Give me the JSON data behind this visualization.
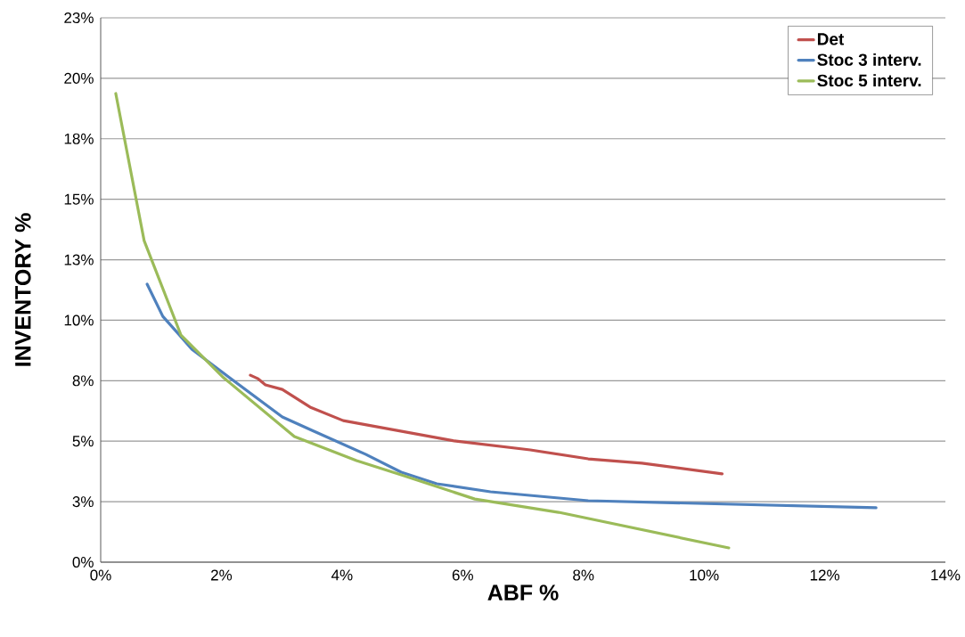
{
  "chart_data": {
    "type": "line",
    "xlabel": "ABF %",
    "ylabel": "INVENTORY %",
    "xlim": [
      0,
      14
    ],
    "ylim": [
      0,
      22.5
    ],
    "xticks": [
      {
        "value": 0,
        "label": "0%"
      },
      {
        "value": 2,
        "label": "2%"
      },
      {
        "value": 4,
        "label": "4%"
      },
      {
        "value": 6,
        "label": "6%"
      },
      {
        "value": 8,
        "label": "8%"
      },
      {
        "value": 10,
        "label": "10%"
      },
      {
        "value": 12,
        "label": "12%"
      },
      {
        "value": 14,
        "label": "14%"
      }
    ],
    "yticks": [
      {
        "value": 0,
        "label": "0%"
      },
      {
        "value": 2.5,
        "label": "3%"
      },
      {
        "value": 5,
        "label": "5%"
      },
      {
        "value": 7.5,
        "label": "8%"
      },
      {
        "value": 10,
        "label": "10%"
      },
      {
        "value": 12.5,
        "label": "13%"
      },
      {
        "value": 15,
        "label": "15%"
      },
      {
        "value": 17.5,
        "label": "18%"
      },
      {
        "value": 20,
        "label": "20%"
      },
      {
        "value": 22.5,
        "label": "23%"
      }
    ],
    "grid": "y",
    "legend": "top right",
    "marker": "none",
    "line_style": "solid",
    "series": [
      {
        "name": "Det",
        "color": "#c0504d",
        "x": [
          2.48,
          2.61,
          2.73,
          3.01,
          3.47,
          4.02,
          5.86,
          7.12,
          8.08,
          8.97,
          10.3
        ],
        "values": [
          7.73,
          7.58,
          7.33,
          7.14,
          6.41,
          5.85,
          5.01,
          4.64,
          4.27,
          4.09,
          3.65
        ]
      },
      {
        "name": "Stoc 3 interv.",
        "color": "#4f81bd",
        "x": [
          0.77,
          1.03,
          1.29,
          1.51,
          2.02,
          3.01,
          3.5,
          4.39,
          4.98,
          5.57,
          6.46,
          8.08,
          12.85
        ],
        "values": [
          11.49,
          10.16,
          9.43,
          8.8,
          7.84,
          6.0,
          5.45,
          4.46,
          3.72,
          3.24,
          2.91,
          2.54,
          2.25
        ]
      },
      {
        "name": "Stoc 5 interv.",
        "color": "#9bbb59",
        "x": [
          0.25,
          0.72,
          1.33,
          2.02,
          3.21,
          4.24,
          4.98,
          6.2,
          7.59,
          10.41
        ],
        "values": [
          19.37,
          13.29,
          9.39,
          7.66,
          5.19,
          4.2,
          3.61,
          2.61,
          2.06,
          0.59
        ]
      }
    ]
  }
}
